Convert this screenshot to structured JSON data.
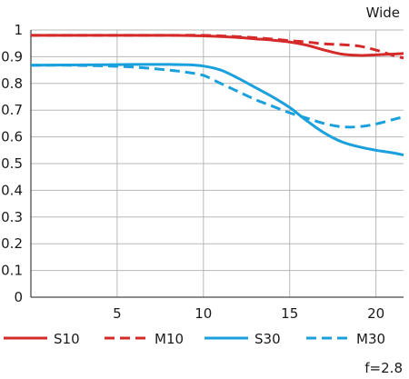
{
  "chart_data": {
    "type": "line",
    "title": "Wide",
    "note": "f=2.8",
    "xlim": [
      0,
      21.6
    ],
    "ylim": [
      0,
      1
    ],
    "xticks": [
      5,
      10,
      15,
      20
    ],
    "xtick_labels": [
      "5",
      "10",
      "15",
      "20"
    ],
    "yticks": [
      0,
      0.1,
      0.2,
      0.3,
      0.4,
      0.5,
      0.6,
      0.7,
      0.8,
      0.9,
      1
    ],
    "ytick_labels": [
      "0",
      "0.1",
      "0.2",
      "0.3",
      "0.4",
      "0.5",
      "0.6",
      "0.7",
      "0.8",
      "0.9",
      "1"
    ],
    "grid": true,
    "legend_position": "bottom",
    "series": [
      {
        "name": "S10",
        "color": "#d42a2a",
        "dash": "solid",
        "x": [
          0,
          2,
          4,
          6,
          8,
          10,
          12,
          13,
          14,
          15,
          16,
          17,
          18,
          19,
          20,
          21,
          21.6
        ],
        "y": [
          0.98,
          0.98,
          0.98,
          0.98,
          0.98,
          0.978,
          0.972,
          0.967,
          0.962,
          0.955,
          0.943,
          0.925,
          0.91,
          0.905,
          0.907,
          0.91,
          0.912
        ]
      },
      {
        "name": "M10",
        "color": "#d42a2a",
        "dash": "dashed",
        "x": [
          0,
          2,
          4,
          6,
          8,
          10,
          12,
          14,
          15,
          16,
          17,
          18,
          19,
          20,
          21,
          21.6
        ],
        "y": [
          0.98,
          0.98,
          0.98,
          0.98,
          0.98,
          0.98,
          0.975,
          0.966,
          0.96,
          0.955,
          0.948,
          0.945,
          0.94,
          0.925,
          0.905,
          0.895
        ]
      },
      {
        "name": "S30",
        "color": "#1aa0dc",
        "dash": "solid",
        "x": [
          0,
          2,
          4,
          6,
          8,
          9,
          10,
          11,
          12,
          13,
          14,
          15,
          16,
          17,
          18,
          19,
          20,
          21,
          21.6
        ],
        "y": [
          0.868,
          0.869,
          0.87,
          0.871,
          0.871,
          0.87,
          0.865,
          0.85,
          0.82,
          0.785,
          0.75,
          0.71,
          0.66,
          0.615,
          0.582,
          0.563,
          0.55,
          0.54,
          0.532
        ]
      },
      {
        "name": "M30",
        "color": "#1aa0dc",
        "dash": "dashed",
        "x": [
          0,
          2,
          4,
          6,
          8,
          9,
          10,
          11,
          12,
          13,
          14,
          15,
          16,
          17,
          18,
          19,
          20,
          21,
          21.6
        ],
        "y": [
          0.868,
          0.868,
          0.866,
          0.861,
          0.85,
          0.842,
          0.83,
          0.8,
          0.77,
          0.74,
          0.715,
          0.69,
          0.67,
          0.65,
          0.638,
          0.638,
          0.648,
          0.665,
          0.675
        ]
      }
    ]
  }
}
